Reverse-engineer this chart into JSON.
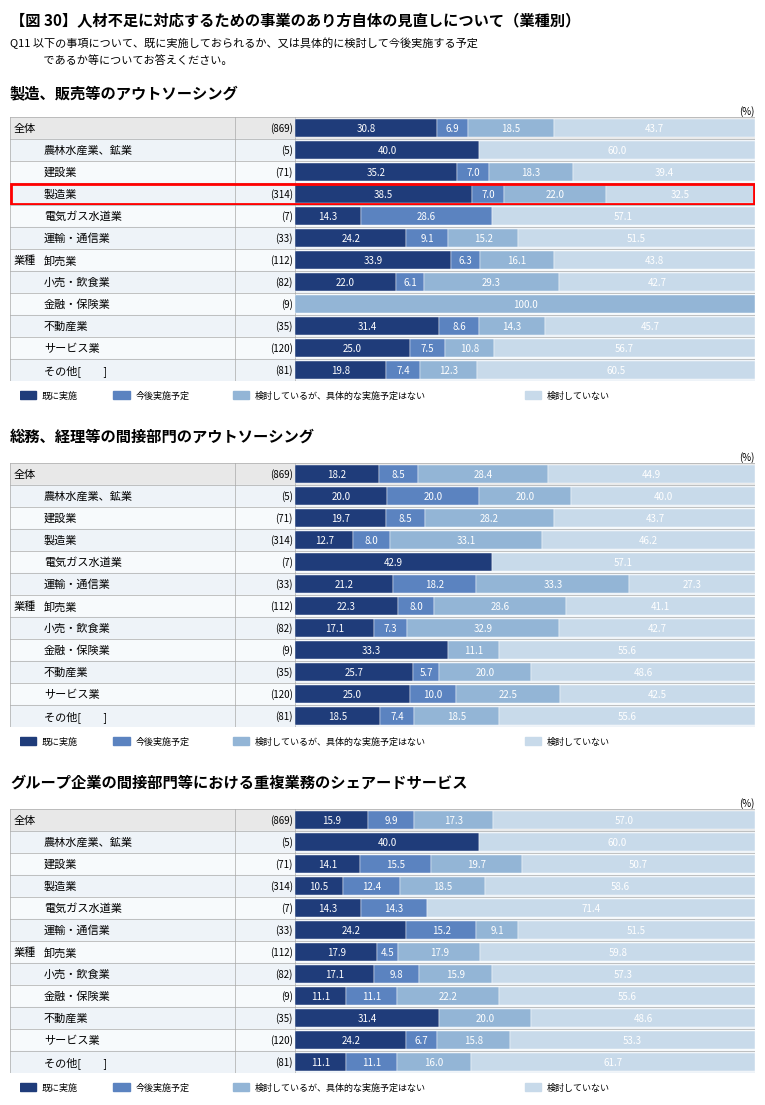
{
  "title": "【図 30】人材不足に対応するための事業のあり方自体の見直しについて（業種別）",
  "subtitle_line1": "Q11 以下の事項について、既に実施しておられるか、又は具体的に検討して今後実施する予定",
  "subtitle_line2": "　　　であるか等についてお答えください。",
  "colors": [
    "#1F3C7A",
    "#5B83C0",
    "#93B5D6",
    "#C8DAEA"
  ],
  "legend_labels": [
    "既に実施",
    "今後実施予定",
    "検討しているが、具体的な実施予定はない",
    "検討していない"
  ],
  "charts": [
    {
      "title": "製造、販売等のアウトソーシング",
      "rows": [
        {
          "label": "全体",
          "n": "(869)",
          "values": [
            30.8,
            6.9,
            18.5,
            43.7
          ],
          "highlight": false,
          "is_header": true
        },
        {
          "label": "農林水産業、鉱業",
          "n": "(5)",
          "values": [
            40.0,
            0,
            0,
            60.0
          ],
          "highlight": false,
          "is_header": false
        },
        {
          "label": "建設業",
          "n": "(71)",
          "values": [
            35.2,
            7.0,
            18.3,
            39.4
          ],
          "highlight": false,
          "is_header": false
        },
        {
          "label": "製造業",
          "n": "(314)",
          "values": [
            38.5,
            7.0,
            22.0,
            32.5
          ],
          "highlight": true,
          "is_header": false
        },
        {
          "label": "電気ガス水道業",
          "n": "(7)",
          "values": [
            14.3,
            28.6,
            0,
            57.1
          ],
          "highlight": false,
          "is_header": false
        },
        {
          "label": "運輸・通信業",
          "n": "(33)",
          "values": [
            24.2,
            9.1,
            15.2,
            51.5
          ],
          "highlight": false,
          "is_header": false
        },
        {
          "label": "卸売業",
          "n": "(112)",
          "values": [
            33.9,
            6.3,
            16.1,
            43.8
          ],
          "highlight": false,
          "is_header": false
        },
        {
          "label": "小売・飲食業",
          "n": "(82)",
          "values": [
            22.0,
            6.1,
            29.3,
            42.7
          ],
          "highlight": false,
          "is_header": false
        },
        {
          "label": "金融・保険業",
          "n": "(9)",
          "values": [
            0,
            0,
            100.0,
            0
          ],
          "highlight": false,
          "is_header": false
        },
        {
          "label": "不動産業",
          "n": "(35)",
          "values": [
            31.4,
            8.6,
            14.3,
            45.7
          ],
          "highlight": false,
          "is_header": false
        },
        {
          "label": "サービス業",
          "n": "(120)",
          "values": [
            25.0,
            7.5,
            10.8,
            56.7
          ],
          "highlight": false,
          "is_header": false
        },
        {
          "label": "その他[　　]",
          "n": "(81)",
          "values": [
            19.8,
            7.4,
            12.3,
            60.5
          ],
          "highlight": false,
          "is_header": false
        }
      ]
    },
    {
      "title": "総務、経理等の間接部門のアウトソーシング",
      "rows": [
        {
          "label": "全体",
          "n": "(869)",
          "values": [
            18.2,
            8.5,
            28.4,
            44.9
          ],
          "highlight": false,
          "is_header": true
        },
        {
          "label": "農林水産業、鉱業",
          "n": "(5)",
          "values": [
            20.0,
            20.0,
            20.0,
            40.0
          ],
          "highlight": false,
          "is_header": false
        },
        {
          "label": "建設業",
          "n": "(71)",
          "values": [
            19.7,
            8.5,
            28.2,
            43.7
          ],
          "highlight": false,
          "is_header": false
        },
        {
          "label": "製造業",
          "n": "(314)",
          "values": [
            12.7,
            8.0,
            33.1,
            46.2
          ],
          "highlight": false,
          "is_header": false
        },
        {
          "label": "電気ガス水道業",
          "n": "(7)",
          "values": [
            42.9,
            0,
            0,
            57.1
          ],
          "highlight": false,
          "is_header": false
        },
        {
          "label": "運輸・通信業",
          "n": "(33)",
          "values": [
            21.2,
            18.2,
            33.3,
            27.3
          ],
          "highlight": false,
          "is_header": false
        },
        {
          "label": "卸売業",
          "n": "(112)",
          "values": [
            22.3,
            8.0,
            28.6,
            41.1
          ],
          "highlight": false,
          "is_header": false
        },
        {
          "label": "小売・飲食業",
          "n": "(82)",
          "values": [
            17.1,
            7.3,
            32.9,
            42.7
          ],
          "highlight": false,
          "is_header": false
        },
        {
          "label": "金融・保険業",
          "n": "(9)",
          "values": [
            33.3,
            0,
            11.1,
            55.6
          ],
          "highlight": false,
          "is_header": false
        },
        {
          "label": "不動産業",
          "n": "(35)",
          "values": [
            25.7,
            5.7,
            20.0,
            48.6
          ],
          "highlight": false,
          "is_header": false
        },
        {
          "label": "サービス業",
          "n": "(120)",
          "values": [
            25.0,
            10.0,
            22.5,
            42.5
          ],
          "highlight": false,
          "is_header": false
        },
        {
          "label": "その他[　　]",
          "n": "(81)",
          "values": [
            18.5,
            7.4,
            18.5,
            55.6
          ],
          "highlight": false,
          "is_header": false
        }
      ]
    },
    {
      "title": "グループ企業の間接部門等における重複業務のシェアードサービス",
      "rows": [
        {
          "label": "全体",
          "n": "(869)",
          "values": [
            15.9,
            9.9,
            17.3,
            57.0
          ],
          "highlight": false,
          "is_header": true
        },
        {
          "label": "農林水産業、鉱業",
          "n": "(5)",
          "values": [
            40.0,
            0,
            0,
            60.0
          ],
          "highlight": false,
          "is_header": false
        },
        {
          "label": "建設業",
          "n": "(71)",
          "values": [
            14.1,
            15.5,
            19.7,
            50.7
          ],
          "highlight": false,
          "is_header": false
        },
        {
          "label": "製造業",
          "n": "(314)",
          "values": [
            10.5,
            12.4,
            18.5,
            58.6
          ],
          "highlight": false,
          "is_header": false
        },
        {
          "label": "電気ガス水道業",
          "n": "(7)",
          "values": [
            14.3,
            14.3,
            0,
            71.4
          ],
          "highlight": false,
          "is_header": false
        },
        {
          "label": "運輸・通信業",
          "n": "(33)",
          "values": [
            24.2,
            15.2,
            9.1,
            51.5
          ],
          "highlight": false,
          "is_header": false
        },
        {
          "label": "卸売業",
          "n": "(112)",
          "values": [
            17.9,
            4.5,
            17.9,
            59.8
          ],
          "highlight": false,
          "is_header": false
        },
        {
          "label": "小売・飲食業",
          "n": "(82)",
          "values": [
            17.1,
            9.8,
            15.9,
            57.3
          ],
          "highlight": false,
          "is_header": false
        },
        {
          "label": "金融・保険業",
          "n": "(9)",
          "values": [
            11.1,
            11.1,
            22.2,
            55.6
          ],
          "highlight": false,
          "is_header": false
        },
        {
          "label": "不動産業",
          "n": "(35)",
          "values": [
            31.4,
            0,
            20.0,
            48.6
          ],
          "highlight": false,
          "is_header": false
        },
        {
          "label": "サービス業",
          "n": "(120)",
          "values": [
            24.2,
            6.7,
            15.8,
            53.3
          ],
          "highlight": false,
          "is_header": false
        },
        {
          "label": "その他[　　]",
          "n": "(81)",
          "values": [
            11.1,
            11.1,
            16.0,
            61.7
          ],
          "highlight": false,
          "is_header": false
        }
      ]
    }
  ]
}
